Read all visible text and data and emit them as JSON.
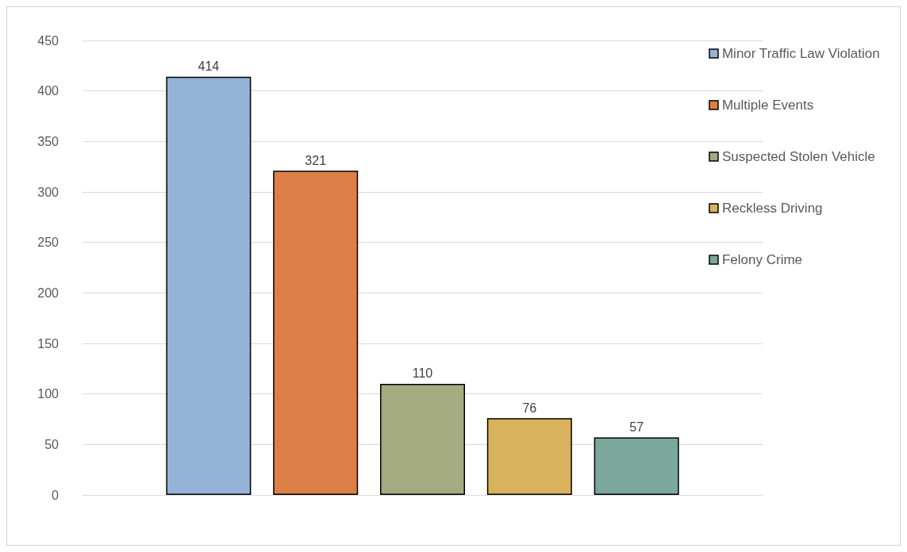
{
  "chart_data": {
    "type": "bar",
    "categories": [
      null
    ],
    "series": [
      {
        "name": "Minor Traffic Law Violation",
        "color": "#95b3d7",
        "values": [
          414
        ]
      },
      {
        "name": "Multiple Events",
        "color": "#dd8047",
        "values": [
          321
        ]
      },
      {
        "name": "Suspected Stolen Vehicle",
        "color": "#a5ab81",
        "values": [
          110
        ]
      },
      {
        "name": "Reckless Driving",
        "color": "#d8b25c",
        "values": [
          76
        ]
      },
      {
        "name": "Felony Crime",
        "color": "#7ba79d",
        "values": [
          57
        ]
      }
    ],
    "ylim": [
      0,
      450
    ],
    "yticks": [
      0,
      50,
      100,
      150,
      200,
      250,
      300,
      350,
      400,
      450
    ],
    "grid": "y",
    "legend": "right",
    "data_labels": true
  }
}
